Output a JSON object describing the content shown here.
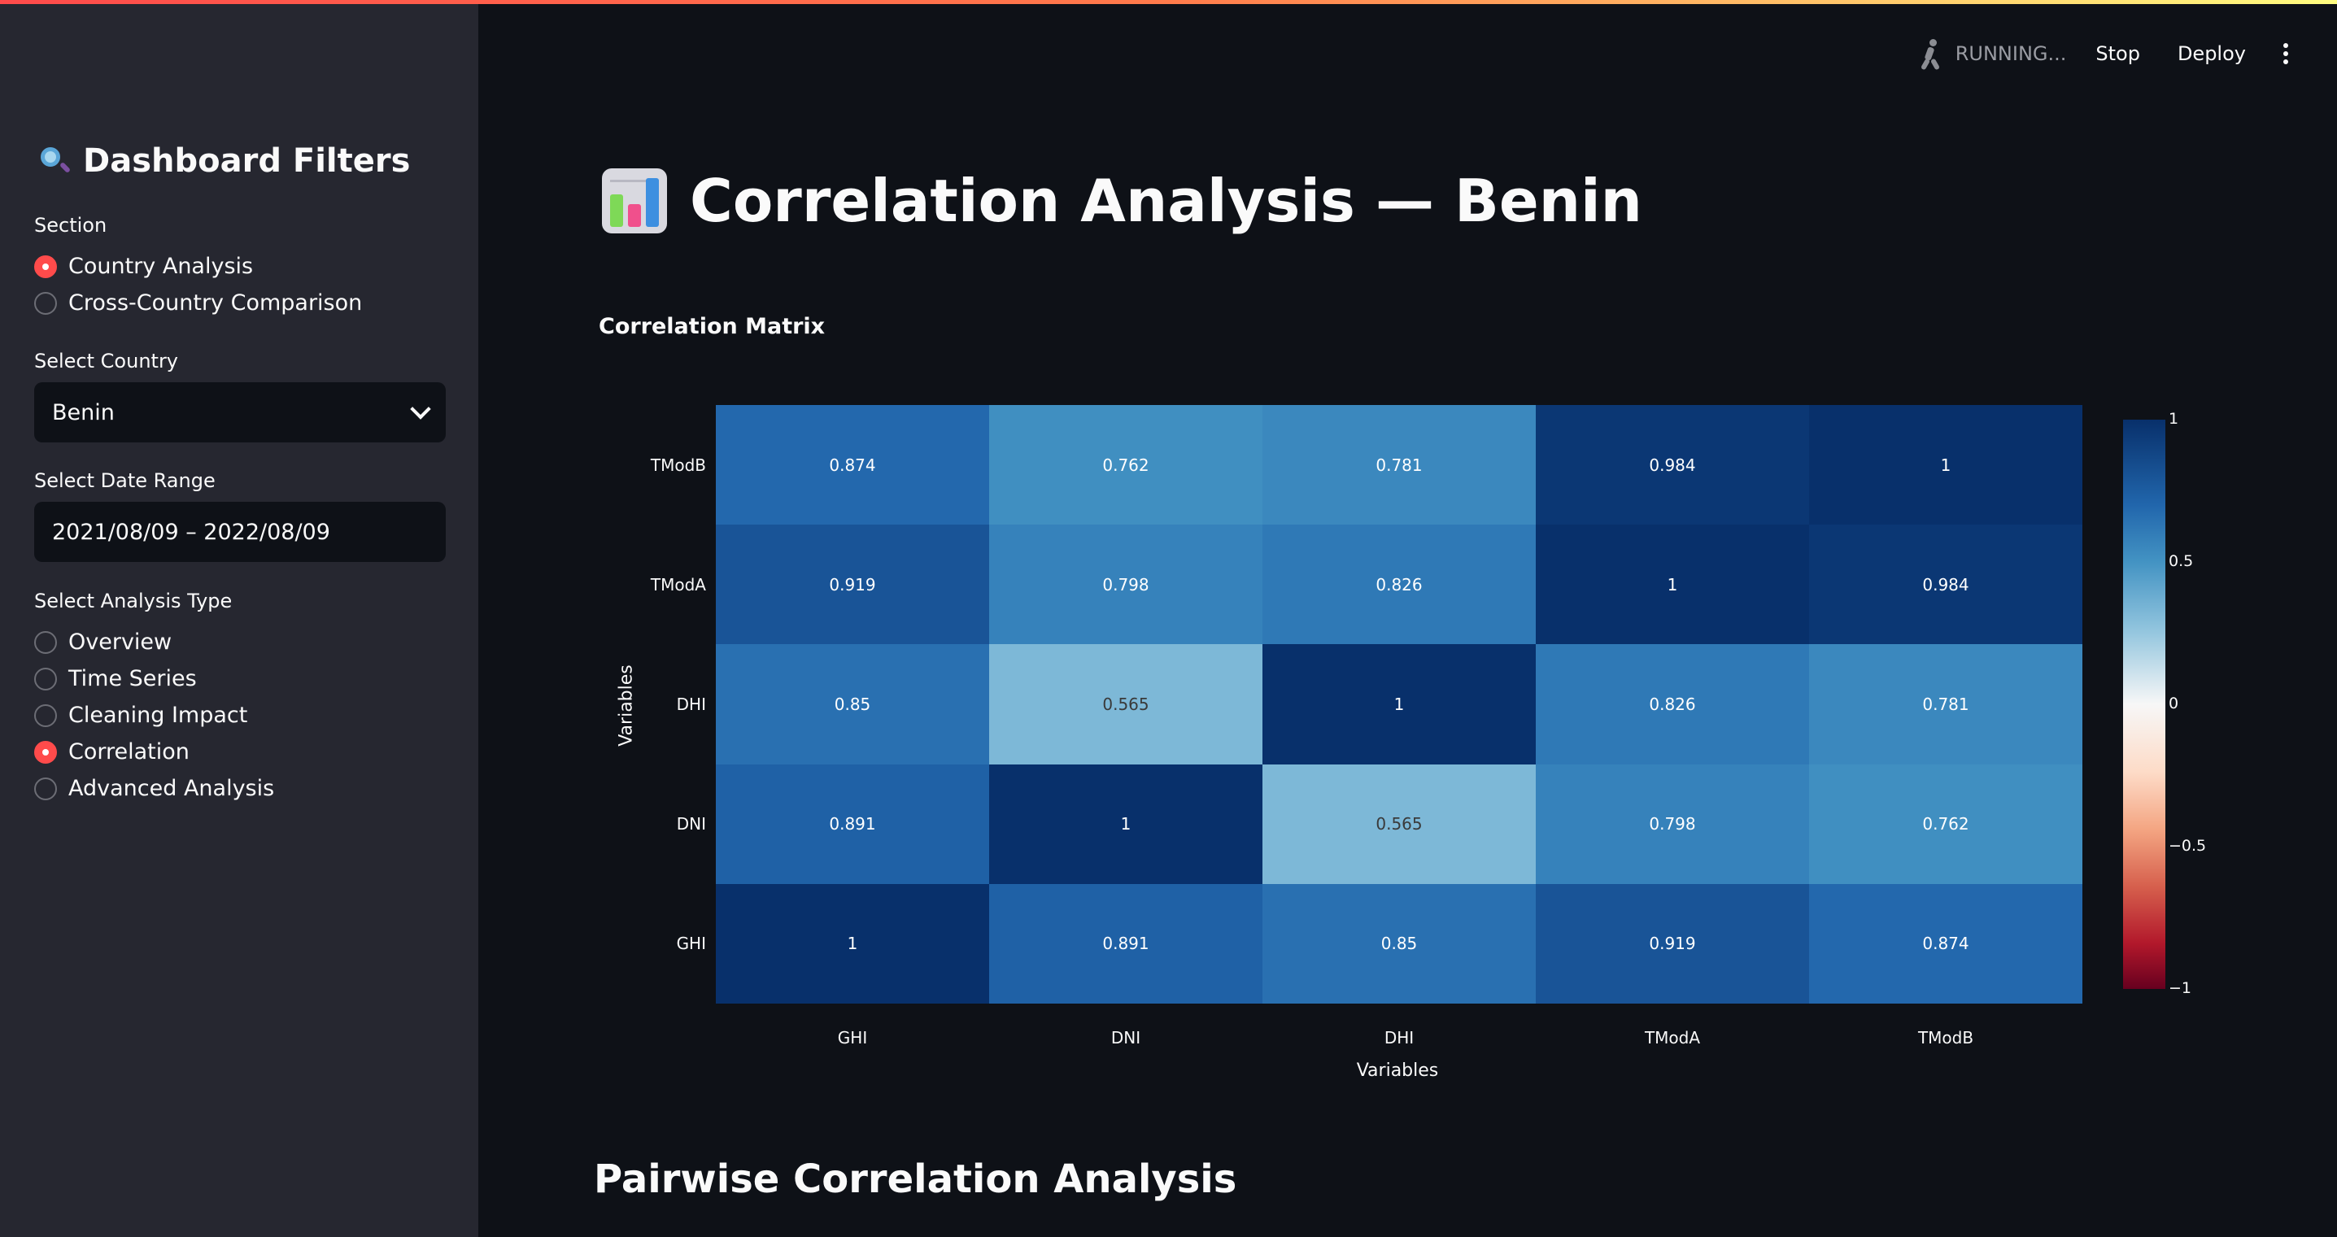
{
  "header": {
    "status": "RUNNING...",
    "stop_label": "Stop",
    "deploy_label": "Deploy"
  },
  "sidebar": {
    "title": "Dashboard Filters",
    "section_label": "Section",
    "section_options": [
      {
        "label": "Country Analysis",
        "selected": true
      },
      {
        "label": "Cross-Country Comparison",
        "selected": false
      }
    ],
    "country_label": "Select Country",
    "country_value": "Benin",
    "date_label": "Select Date Range",
    "date_value": "2021/08/09 – 2022/08/09",
    "analysis_label": "Select Analysis Type",
    "analysis_options": [
      {
        "label": "Overview",
        "selected": false
      },
      {
        "label": "Time Series",
        "selected": false
      },
      {
        "label": "Cleaning Impact",
        "selected": false
      },
      {
        "label": "Correlation",
        "selected": true
      },
      {
        "label": "Advanced Analysis",
        "selected": false
      }
    ]
  },
  "main": {
    "title": "Correlation Analysis — Benin",
    "subheading": "Correlation Matrix",
    "section_heading": "Pairwise Correlation Analysis"
  },
  "chart_data": {
    "type": "heatmap",
    "xlabel": "Variables",
    "ylabel": "Variables",
    "x": [
      "GHI",
      "DNI",
      "DHI",
      "TModA",
      "TModB"
    ],
    "y": [
      "GHI",
      "DNI",
      "DHI",
      "TModA",
      "TModB"
    ],
    "z": [
      [
        "1",
        "0.891",
        "0.85",
        "0.919",
        "0.874"
      ],
      [
        "0.891",
        "1",
        "0.565",
        "0.798",
        "0.762"
      ],
      [
        "0.85",
        "0.565",
        "1",
        "0.826",
        "0.781"
      ],
      [
        "0.919",
        "0.798",
        "0.826",
        "1",
        "0.984"
      ],
      [
        "0.874",
        "0.762",
        "0.781",
        "0.984",
        "1"
      ]
    ],
    "zlim": [
      -1,
      1
    ],
    "colorbar_ticks": [
      "1",
      "0.5",
      "0",
      "−0.5",
      "−1"
    ],
    "colorscale": "RdBu"
  }
}
